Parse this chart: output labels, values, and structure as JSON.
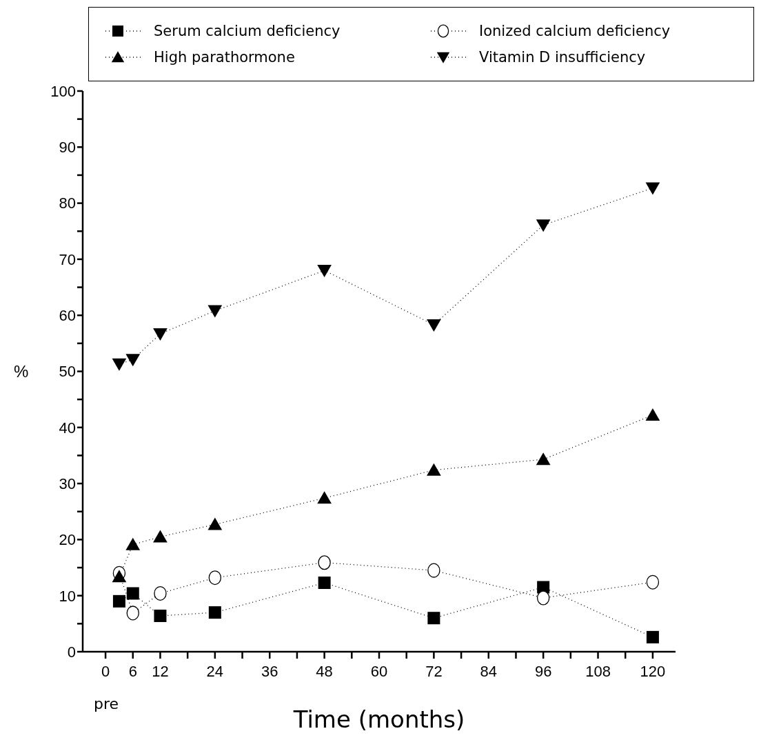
{
  "chart_data": {
    "type": "line",
    "xlabel": "Time (months)",
    "ylabel": "%",
    "annotations": [
      "pre"
    ],
    "xlim": [
      -5,
      125
    ],
    "xticks": [
      0,
      6,
      12,
      {
        "value": 18,
        "label": null
      },
      24,
      {
        "value": 30,
        "label": null
      },
      36,
      {
        "value": 42,
        "label": null
      },
      48,
      {
        "value": 54,
        "label": null
      },
      60,
      {
        "value": 66,
        "label": null
      },
      72,
      {
        "value": 78,
        "label": null
      },
      84,
      {
        "value": 90,
        "label": null
      },
      96,
      {
        "value": 102,
        "label": null
      },
      108,
      {
        "value": 114,
        "label": null
      },
      120
    ],
    "ylim": [
      0,
      100
    ],
    "yticks": [
      0,
      {
        "value": 5,
        "label": null
      },
      10,
      {
        "value": 15,
        "label": null
      },
      20,
      {
        "value": 25,
        "label": null
      },
      30,
      {
        "value": 35,
        "label": null
      },
      40,
      {
        "value": 45,
        "label": null
      },
      50,
      {
        "value": 55,
        "label": null
      },
      60,
      {
        "value": 65,
        "label": null
      },
      70,
      {
        "value": 75,
        "label": null
      },
      80,
      {
        "value": 85,
        "label": null
      },
      90,
      {
        "value": 95,
        "label": null
      },
      100
    ],
    "x": [
      3,
      6,
      12,
      24,
      48,
      72,
      96,
      120
    ],
    "line_style": "dotted",
    "legend": "top",
    "grid": false,
    "series": [
      {
        "name": "Serum calcium deficiency",
        "color": "#000000",
        "marker": "square",
        "values": [
          9.0,
          10.4,
          6.4,
          7.0,
          12.3,
          6.0,
          11.5,
          2.6
        ]
      },
      {
        "name": "Ionized calcium deficiency",
        "color": "#000000",
        "marker": "circle",
        "values": [
          14.0,
          6.9,
          10.4,
          13.2,
          15.9,
          14.5,
          9.6,
          12.4
        ]
      },
      {
        "name": "High parathormone",
        "color": "#000000",
        "marker": "triangle",
        "values": [
          13.4,
          19.1,
          20.5,
          22.7,
          27.4,
          32.4,
          34.3,
          42.2
        ]
      },
      {
        "name": "Vitamin D insufficiency",
        "color": "#000000",
        "marker": "triangle-down",
        "values": [
          51.3,
          52.1,
          56.7,
          60.8,
          68.0,
          58.3,
          76.1,
          82.7
        ]
      }
    ]
  }
}
